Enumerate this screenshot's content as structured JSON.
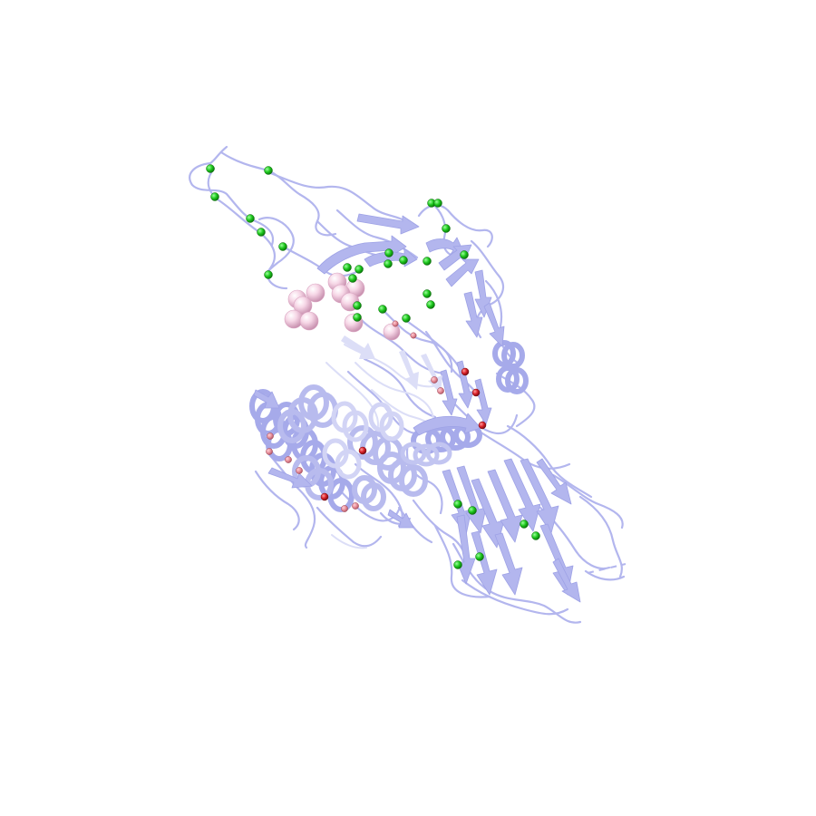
{
  "scene": {
    "background": "#ffffff",
    "colors": {
      "ribbon": "#b3b6ee",
      "ribbon_dark": "#9ea2e6",
      "ribbon_faint": "#d9dbf6",
      "green_atom": "#1ec81e",
      "green_atom_dark": "#0a7a0a",
      "red_atom": "#d9202a",
      "red_atom_faint": "#e58a96",
      "pink_sphere": "#f2c8dc",
      "pink_sphere_dark": "#d9a3c0"
    },
    "layers": [
      "protein-cartoon-backbone",
      "alpha-helix-coils",
      "beta-sheet-arrows",
      "ligand-sphere-cluster",
      "green-ion-atoms",
      "red-oxygen-atoms"
    ]
  }
}
